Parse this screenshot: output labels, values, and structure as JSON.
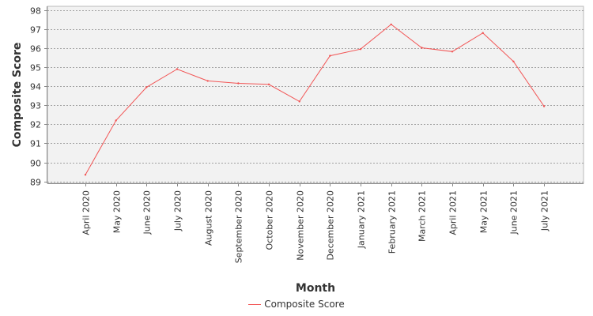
{
  "chart_data": {
    "type": "line",
    "xlabel": "Month",
    "ylabel": "Composite Score",
    "ylim": [
      88.9,
      98.2
    ],
    "yticks": [
      89,
      90,
      91,
      92,
      93,
      94,
      95,
      96,
      97,
      98
    ],
    "grid": true,
    "legend_position": "bottom",
    "categories": [
      "April 2020",
      "May 2020",
      "June 2020",
      "July 2020",
      "August 2020",
      "September 2020",
      "October 2020",
      "November 2020",
      "December 2020",
      "January 2021",
      "February 2021",
      "March 2021",
      "April 2021",
      "May 2021",
      "June 2021",
      "July 2021"
    ],
    "series": [
      {
        "name": "Composite Score",
        "color": "#f25555",
        "values": [
          89.35,
          92.2,
          93.95,
          94.9,
          94.28,
          94.15,
          94.1,
          93.2,
          95.6,
          95.95,
          97.25,
          96.02,
          95.82,
          96.8,
          95.3,
          92.95
        ]
      }
    ]
  },
  "colors": {
    "plot_background": "#f2f2f2",
    "grid": "#888888",
    "series": "#f25555"
  }
}
